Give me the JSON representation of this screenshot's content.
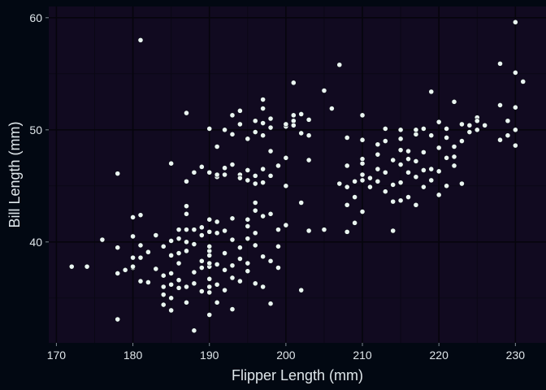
{
  "chart_data": {
    "type": "scatter",
    "title": "",
    "xlabel": "Flipper Length (mm)",
    "ylabel": "Bill Length (mm)",
    "xlim": [
      169,
      234
    ],
    "ylim": [
      31,
      61
    ],
    "xticks": [
      170,
      180,
      190,
      200,
      210,
      220,
      230
    ],
    "yticks": [
      40,
      50,
      60
    ],
    "grid": true,
    "legend": "none",
    "colors": {
      "panel": "#110a20",
      "background": "#020812",
      "point": "#eaf5f1",
      "text": "#dfe6ea"
    },
    "points": [
      [
        172,
        37.8
      ],
      [
        174,
        37.8
      ],
      [
        176,
        40.2
      ],
      [
        178,
        46.1
      ],
      [
        178,
        39.5
      ],
      [
        178,
        37.2
      ],
      [
        178,
        33.1
      ],
      [
        179,
        37.5
      ],
      [
        180,
        42.2
      ],
      [
        180,
        40.5
      ],
      [
        180,
        37.7
      ],
      [
        180,
        37.8
      ],
      [
        180,
        38.6
      ],
      [
        181,
        42.4
      ],
      [
        181,
        39.7
      ],
      [
        181,
        38.6
      ],
      [
        181,
        36.5
      ],
      [
        181,
        58.0
      ],
      [
        182,
        36.4
      ],
      [
        182,
        39.1
      ],
      [
        183,
        40.6
      ],
      [
        183,
        37.6
      ],
      [
        184,
        34.4
      ],
      [
        184,
        36.0
      ],
      [
        184,
        39.6
      ],
      [
        184,
        35.3
      ],
      [
        184,
        37.0
      ],
      [
        185,
        38.8
      ],
      [
        185,
        36.2
      ],
      [
        185,
        40.1
      ],
      [
        185,
        35.0
      ],
      [
        185,
        33.9
      ],
      [
        185,
        47.0
      ],
      [
        185,
        37.2
      ],
      [
        186,
        41.1
      ],
      [
        186,
        39.0
      ],
      [
        186,
        38.1
      ],
      [
        186,
        36.6
      ],
      [
        186,
        40.3
      ],
      [
        186,
        35.9
      ],
      [
        187,
        45.4
      ],
      [
        187,
        51.5
      ],
      [
        187,
        39.2
      ],
      [
        187,
        42.5
      ],
      [
        187,
        41.1
      ],
      [
        187,
        36.0
      ],
      [
        187,
        34.6
      ],
      [
        187,
        40.0
      ],
      [
        187,
        43.2
      ],
      [
        188,
        32.1
      ],
      [
        188,
        46.2
      ],
      [
        188,
        39.8
      ],
      [
        188,
        37.3
      ],
      [
        188,
        41.1
      ],
      [
        188,
        36.3
      ],
      [
        189,
        46.7
      ],
      [
        189,
        40.6
      ],
      [
        189,
        38.3
      ],
      [
        189,
        41.3
      ],
      [
        189,
        37.7
      ],
      [
        189,
        35.6
      ],
      [
        190,
        36.7
      ],
      [
        190,
        39.2
      ],
      [
        190,
        40.9
      ],
      [
        190,
        38.8
      ],
      [
        190,
        37.8
      ],
      [
        190,
        33.5
      ],
      [
        190,
        35.5
      ],
      [
        190,
        39.6
      ],
      [
        190,
        46.2
      ],
      [
        190,
        50.1
      ],
      [
        190,
        42.0
      ],
      [
        190,
        38.1
      ],
      [
        190,
        36.0
      ],
      [
        191,
        34.6
      ],
      [
        191,
        41.8
      ],
      [
        191,
        40.8
      ],
      [
        191,
        38.0
      ],
      [
        191,
        36.2
      ],
      [
        191,
        48.5
      ],
      [
        191,
        45.8
      ],
      [
        191,
        46.0
      ],
      [
        192,
        41.0
      ],
      [
        192,
        39.0
      ],
      [
        192,
        37.5
      ],
      [
        192,
        35.7
      ],
      [
        192,
        46.6
      ],
      [
        192,
        50.0
      ],
      [
        192,
        46.0
      ],
      [
        193,
        40.2
      ],
      [
        193,
        36.8
      ],
      [
        193,
        34.0
      ],
      [
        193,
        42.1
      ],
      [
        193,
        37.9
      ],
      [
        193,
        49.6
      ],
      [
        193,
        46.9
      ],
      [
        193,
        51.3
      ],
      [
        194,
        39.5
      ],
      [
        194,
        46.0
      ],
      [
        194,
        45.7
      ],
      [
        194,
        38.5
      ],
      [
        194,
        36.5
      ],
      [
        194,
        50.5
      ],
      [
        194,
        51.7
      ],
      [
        195,
        40.3
      ],
      [
        195,
        37.4
      ],
      [
        195,
        46.4
      ],
      [
        195,
        42.0
      ],
      [
        195,
        45.5
      ],
      [
        195,
        38.1
      ],
      [
        195,
        49.2
      ],
      [
        195,
        41.4
      ],
      [
        196,
        45.9
      ],
      [
        196,
        42.8
      ],
      [
        196,
        39.7
      ],
      [
        196,
        36.3
      ],
      [
        196,
        50.8
      ],
      [
        196,
        45.2
      ],
      [
        196,
        40.8
      ],
      [
        196,
        49.8
      ],
      [
        196,
        43.5
      ],
      [
        197,
        49.5
      ],
      [
        197,
        46.5
      ],
      [
        197,
        42.3
      ],
      [
        197,
        52.7
      ],
      [
        197,
        50.6
      ],
      [
        197,
        51.9
      ],
      [
        197,
        45.3
      ],
      [
        197,
        38.7
      ],
      [
        197,
        36.0
      ],
      [
        198,
        51.0
      ],
      [
        198,
        45.9
      ],
      [
        198,
        42.5
      ],
      [
        198,
        50.2
      ],
      [
        198,
        48.1
      ],
      [
        198,
        38.3
      ],
      [
        198,
        34.5
      ],
      [
        199,
        41.1
      ],
      [
        199,
        46.8
      ],
      [
        199,
        37.7
      ],
      [
        199,
        39.6
      ],
      [
        200,
        50.3
      ],
      [
        200,
        47.5
      ],
      [
        200,
        45.0
      ],
      [
        200,
        41.5
      ],
      [
        200,
        50.5
      ],
      [
        201,
        54.2
      ],
      [
        201,
        51.3
      ],
      [
        201,
        50.8
      ],
      [
        201,
        50.4
      ],
      [
        202,
        49.7
      ],
      [
        202,
        43.5
      ],
      [
        202,
        51.4
      ],
      [
        202,
        35.7
      ],
      [
        203,
        49.5
      ],
      [
        203,
        50.9
      ],
      [
        203,
        47.3
      ],
      [
        203,
        41.0
      ],
      [
        205,
        53.5
      ],
      [
        205,
        41.1
      ],
      [
        206,
        51.9
      ],
      [
        207,
        55.8
      ],
      [
        207,
        45.2
      ],
      [
        208,
        49.3
      ],
      [
        208,
        46.8
      ],
      [
        208,
        44.9
      ],
      [
        208,
        43.3
      ],
      [
        208,
        40.9
      ],
      [
        209,
        45.4
      ],
      [
        209,
        44.0
      ],
      [
        209,
        41.7
      ],
      [
        210,
        47.0
      ],
      [
        210,
        49.1
      ],
      [
        210,
        47.4
      ],
      [
        210,
        46.0
      ],
      [
        210,
        51.3
      ],
      [
        210,
        42.7
      ],
      [
        210,
        45.5
      ],
      [
        211,
        44.9
      ],
      [
        211,
        45.7
      ],
      [
        212,
        46.5
      ],
      [
        212,
        45.4
      ],
      [
        212,
        48.7
      ],
      [
        212,
        47.8
      ],
      [
        213,
        49.0
      ],
      [
        213,
        44.5
      ],
      [
        213,
        46.2
      ],
      [
        213,
        50.1
      ],
      [
        214,
        47.3
      ],
      [
        214,
        45.1
      ],
      [
        214,
        43.6
      ],
      [
        214,
        41.0
      ],
      [
        215,
        48.2
      ],
      [
        215,
        46.9
      ],
      [
        215,
        45.3
      ],
      [
        215,
        49.2
      ],
      [
        215,
        43.7
      ],
      [
        215,
        50.0
      ],
      [
        216,
        47.4
      ],
      [
        216,
        44.0
      ],
      [
        216,
        46.2
      ],
      [
        216,
        48.1
      ],
      [
        217,
        49.6
      ],
      [
        217,
        45.8
      ],
      [
        217,
        47.2
      ],
      [
        217,
        43.3
      ],
      [
        217,
        50.0
      ],
      [
        218,
        50.1
      ],
      [
        218,
        44.9
      ],
      [
        218,
        46.4
      ],
      [
        218,
        48.0
      ],
      [
        219,
        49.5
      ],
      [
        219,
        46.5
      ],
      [
        219,
        53.4
      ],
      [
        219,
        45.5
      ],
      [
        220,
        48.4
      ],
      [
        220,
        44.2
      ],
      [
        220,
        50.7
      ],
      [
        220,
        46.3
      ],
      [
        221,
        50.1
      ],
      [
        221,
        47.5
      ],
      [
        221,
        49.3
      ],
      [
        221,
        45.0
      ],
      [
        222,
        46.8
      ],
      [
        222,
        52.5
      ],
      [
        222,
        47.6
      ],
      [
        222,
        48.5
      ],
      [
        223,
        50.5
      ],
      [
        223,
        49.0
      ],
      [
        223,
        45.2
      ],
      [
        224,
        50.4
      ],
      [
        224,
        49.8
      ],
      [
        225,
        50.0
      ],
      [
        225,
        51.1
      ],
      [
        225,
        50.8
      ],
      [
        226,
        50.4
      ],
      [
        228,
        55.9
      ],
      [
        228,
        52.2
      ],
      [
        228,
        49.1
      ],
      [
        229,
        50.8
      ],
      [
        229,
        49.5
      ],
      [
        230,
        59.6
      ],
      [
        230,
        55.1
      ],
      [
        230,
        52.0
      ],
      [
        230,
        48.6
      ],
      [
        230,
        50.0
      ],
      [
        231,
        54.3
      ]
    ]
  }
}
